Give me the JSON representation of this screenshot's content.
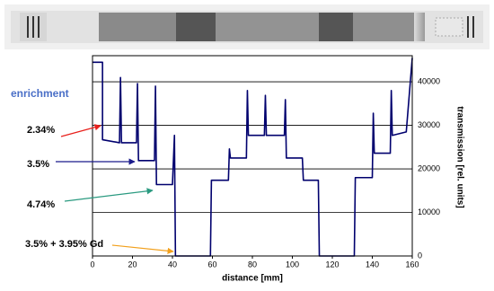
{
  "chart_data": {
    "type": "line",
    "xlabel": "distance [mm]",
    "ylabel": "transmission  [rel. units]",
    "annotations": [
      "enrichment",
      "2.34%",
      "3.5%",
      "4.74%",
      "3.5% + 3.95% Gd"
    ],
    "x": [
      0,
      5,
      5,
      13.5,
      14,
      14.5,
      22,
      22.5,
      23,
      31,
      31.5,
      32,
      40,
      41,
      41.5,
      42,
      59,
      59.5,
      68,
      68.5,
      69,
      77,
      77.5,
      78,
      86,
      86.5,
      87,
      96,
      96.5,
      97,
      105,
      105.5,
      113,
      113.5,
      114,
      131,
      131.5,
      140,
      140.5,
      141,
      149,
      149.5,
      150,
      157,
      160
    ],
    "values": [
      44500,
      44500,
      26700,
      26000,
      41000,
      26000,
      26000,
      39600,
      21900,
      21900,
      39000,
      16400,
      16400,
      27700,
      0,
      0,
      0,
      17400,
      17400,
      24600,
      22500,
      22500,
      38000,
      27700,
      27700,
      36900,
      27700,
      27700,
      35900,
      22500,
      22500,
      17400,
      17400,
      0,
      0,
      0,
      18000,
      18000,
      32800,
      23600,
      23600,
      38000,
      27700,
      28500,
      45500
    ],
    "color": "#00006e",
    "xlim": [
      0,
      160
    ],
    "xticks": [
      0,
      20,
      40,
      60,
      80,
      100,
      120,
      140,
      160
    ],
    "ylim": [
      0,
      46000
    ],
    "yticks": [
      0,
      10000,
      20000,
      30000,
      40000
    ],
    "grid": true
  }
}
